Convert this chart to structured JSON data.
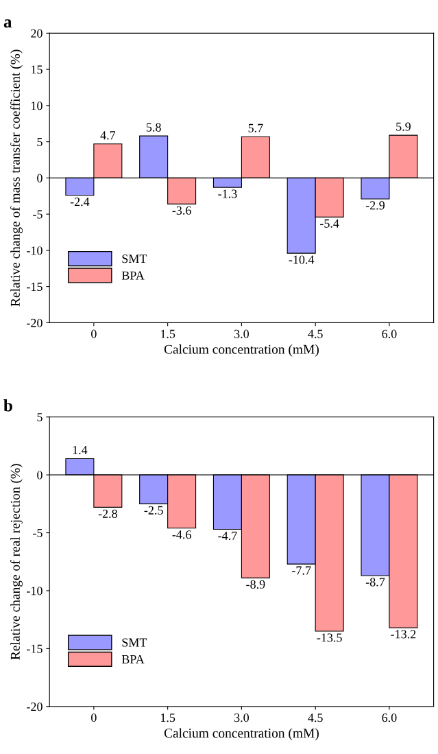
{
  "chart_data": [
    {
      "type": "bar",
      "title": "a",
      "xlabel": "Calcium concentration (mM)",
      "ylabel": "Relative change of mass transfer coefficient (%)",
      "categories": [
        "0",
        "1.5",
        "3.0",
        "4.5",
        "6.0"
      ],
      "series": [
        {
          "name": "SMT",
          "color": "#9999ff",
          "values": [
            -2.4,
            5.8,
            -1.3,
            -10.4,
            -2.9
          ]
        },
        {
          "name": "BPA",
          "color": "#ff9999",
          "values": [
            4.7,
            -3.6,
            5.7,
            -5.4,
            5.9
          ]
        }
      ],
      "ylim": [
        -20,
        20
      ],
      "yticks": [
        -20,
        -15,
        -10,
        -5,
        0,
        5,
        10,
        15,
        20
      ],
      "data_labels": true,
      "legend": "bottom left",
      "ref_lines": [
        {
          "axis": "y",
          "value": 0,
          "color": "#000000"
        }
      ]
    },
    {
      "type": "bar",
      "title": "b",
      "xlabel": "Calcium concentration (mM)",
      "ylabel": "Relative change of real rejection (%)",
      "categories": [
        "0",
        "1.5",
        "3.0",
        "4.5",
        "6.0"
      ],
      "series": [
        {
          "name": "SMT",
          "color": "#9999ff",
          "values": [
            1.4,
            -2.5,
            -4.7,
            -7.7,
            -8.7
          ]
        },
        {
          "name": "BPA",
          "color": "#ff9999",
          "values": [
            -2.8,
            -4.6,
            -8.9,
            -13.5,
            -13.2
          ]
        }
      ],
      "ylim": [
        -20,
        5
      ],
      "yticks": [
        -20,
        -15,
        -10,
        -5,
        0,
        5
      ],
      "data_labels": true,
      "legend": "bottom left",
      "ref_lines": [
        {
          "axis": "y",
          "value": 0,
          "color": "#000000"
        }
      ]
    }
  ]
}
